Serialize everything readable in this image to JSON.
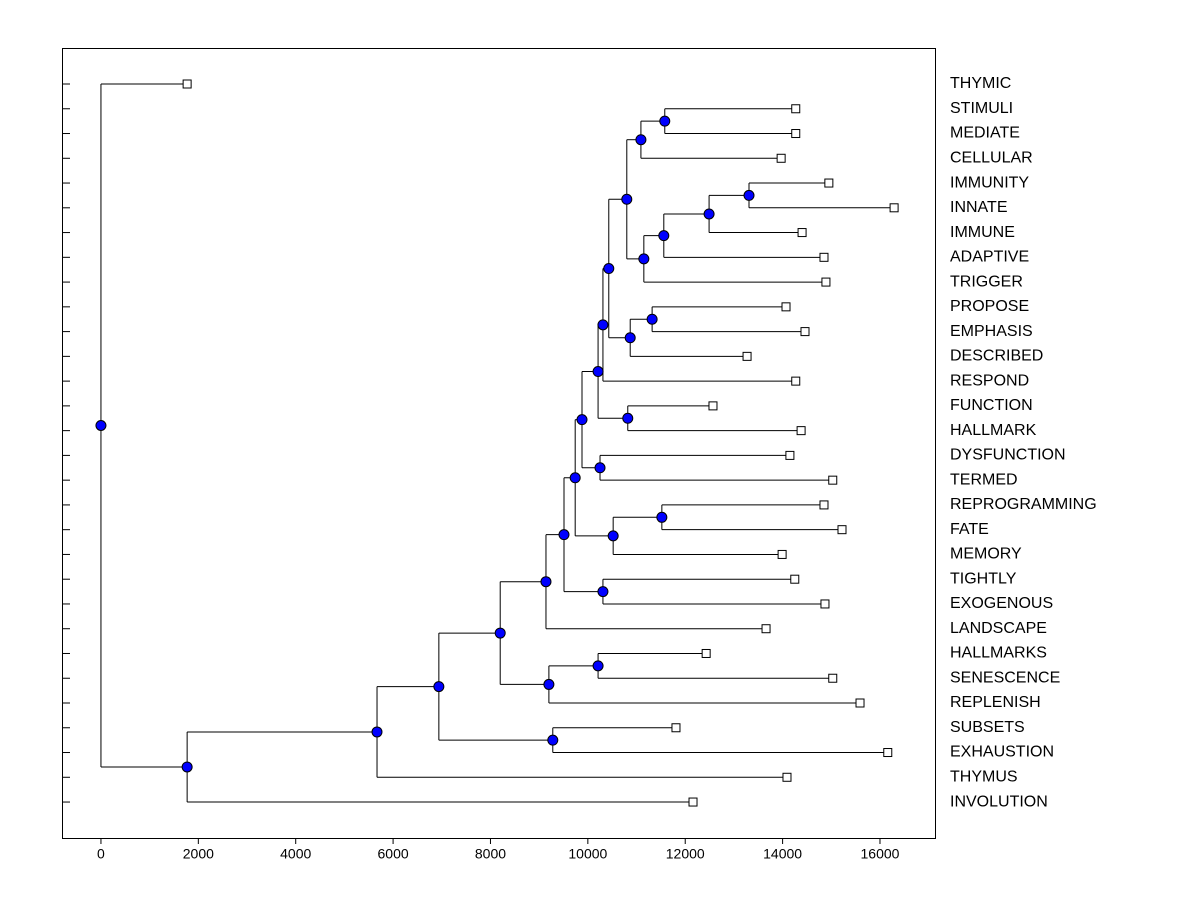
{
  "chart_data": {
    "type": "dendrogram",
    "node_color": "#0000ff",
    "leaf_color": "#ffffff",
    "xlim": [
      -800,
      17130
    ],
    "xticks": [
      0,
      2000,
      4000,
      6000,
      8000,
      10000,
      12000,
      14000,
      16000
    ],
    "tree": {
      "x": 0,
      "children": [
        {
          "label": "THYMIC",
          "x": 1770
        },
        {
          "x": 1770,
          "children": [
            {
              "x": 5670,
              "children": [
                {
                  "x": 6940,
                  "children": [
                    {
                      "x": 8200,
                      "children": [
                        {
                          "x": 9140,
                          "children": [
                            {
                              "x": 9510,
                              "children": [
                                {
                                  "x": 9740,
                                  "children": [
                                    {
                                      "x": 9880,
                                      "children": [
                                        {
                                          "x": 10210,
                                          "children": [
                                            {
                                              "x": 10310,
                                              "children": [
                                                {
                                                  "x": 10430,
                                                  "children": [
                                                    {
                                                      "x": 10800,
                                                      "children": [
                                                        {
                                                          "x": 11090,
                                                          "children": [
                                                            {
                                                              "x": 11580,
                                                              "children": [
                                                                {
                                                                  "label": "STIMULI",
                                                                  "x": 14270
                                                                },
                                                                {
                                                                  "label": "MEDIATE",
                                                                  "x": 14270
                                                                }
                                                              ]
                                                            },
                                                            {
                                                              "label": "CELLULAR",
                                                              "x": 13970
                                                            }
                                                          ]
                                                        },
                                                        {
                                                          "x": 11150,
                                                          "children": [
                                                            {
                                                              "x": 11560,
                                                              "children": [
                                                                {
                                                                  "x": 12490,
                                                                  "children": [
                                                                    {
                                                                      "x": 13310,
                                                                      "children": [
                                                                        {
                                                                          "label": "IMMUNITY",
                                                                          "x": 14950
                                                                        },
                                                                        {
                                                                          "label": "INNATE",
                                                                          "x": 16290
                                                                        }
                                                                      ]
                                                                    },
                                                                    {
                                                                      "label": "IMMUNE",
                                                                      "x": 14400
                                                                    }
                                                                  ]
                                                                },
                                                                {
                                                                  "label": "ADAPTIVE",
                                                                  "x": 14850
                                                                }
                                                              ]
                                                            },
                                                            {
                                                              "label": "TRIGGER",
                                                              "x": 14890
                                                            }
                                                          ]
                                                        }
                                                      ]
                                                    },
                                                    {
                                                      "x": 10870,
                                                      "children": [
                                                        {
                                                          "x": 11320,
                                                          "children": [
                                                            {
                                                              "label": "PROPOSE",
                                                              "x": 14070
                                                            },
                                                            {
                                                              "label": "EMPHASIS",
                                                              "x": 14460
                                                            }
                                                          ]
                                                        },
                                                        {
                                                          "label": "DESCRIBED",
                                                          "x": 13270
                                                        }
                                                      ]
                                                    }
                                                  ]
                                                },
                                                {
                                                  "label": "RESPOND",
                                                  "x": 14270
                                                }
                                              ]
                                            },
                                            {
                                              "x": 10820,
                                              "children": [
                                                {
                                                  "label": "FUNCTION",
                                                  "x": 12570
                                                },
                                                {
                                                  "label": "HALLMARK",
                                                  "x": 14380
                                                }
                                              ]
                                            }
                                          ]
                                        },
                                        {
                                          "x": 10250,
                                          "children": [
                                            {
                                              "label": "DYSFUNCTION",
                                              "x": 14150
                                            },
                                            {
                                              "label": "TERMED",
                                              "x": 15030
                                            }
                                          ]
                                        }
                                      ]
                                    },
                                    {
                                      "x": 10520,
                                      "children": [
                                        {
                                          "x": 11520,
                                          "children": [
                                            {
                                              "label": "REPROGRAMMING",
                                              "x": 14850
                                            },
                                            {
                                              "label": "FATE",
                                              "x": 15220
                                            }
                                          ]
                                        },
                                        {
                                          "label": "MEMORY",
                                          "x": 13990
                                        }
                                      ]
                                    }
                                  ]
                                },
                                {
                                  "x": 10310,
                                  "children": [
                                    {
                                      "label": "TIGHTLY",
                                      "x": 14250
                                    },
                                    {
                                      "label": "EXOGENOUS",
                                      "x": 14870
                                    }
                                  ]
                                }
                              ]
                            },
                            {
                              "label": "LANDSCAPE",
                              "x": 13660
                            }
                          ]
                        },
                        {
                          "x": 9200,
                          "children": [
                            {
                              "x": 10210,
                              "children": [
                                {
                                  "label": "HALLMARKS",
                                  "x": 12430
                                },
                                {
                                  "label": "SENESCENCE",
                                  "x": 15030
                                }
                              ]
                            },
                            {
                              "label": "REPLENISH",
                              "x": 15590
                            }
                          ]
                        }
                      ]
                    },
                    {
                      "x": 9280,
                      "children": [
                        {
                          "label": "SUBSETS",
                          "x": 11810
                        },
                        {
                          "label": "EXHAUSTION",
                          "x": 16160
                        }
                      ]
                    }
                  ]
                },
                {
                  "label": "THYMUS",
                  "x": 14090
                }
              ]
            },
            {
              "label": "INVOLUTION",
              "x": 12160
            }
          ]
        }
      ]
    }
  }
}
